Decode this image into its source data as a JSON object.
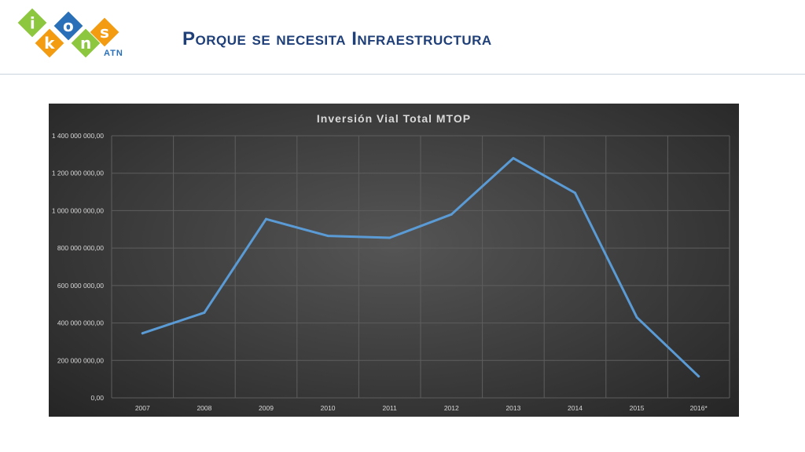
{
  "slide": {
    "title": "Porque se necesita Infraestructura"
  },
  "logo": {
    "letters": [
      "i",
      "k",
      "o",
      "n",
      "s"
    ],
    "colors": [
      "#8dc63f",
      "#f39c12",
      "#2a70b8",
      "#8dc63f",
      "#f39c12"
    ],
    "sub": "ATN"
  },
  "chart_data": {
    "type": "line",
    "title": "Inversión Vial Total MTOP",
    "xlabel": "",
    "ylabel": "",
    "categories": [
      "2007",
      "2008",
      "2009",
      "2010",
      "2011",
      "2012",
      "2013",
      "2014",
      "2015",
      "2016*"
    ],
    "series": [
      {
        "values": [
          345000000,
          455000000,
          955000000,
          865000000,
          855000000,
          980000000,
          1280000000,
          1095000000,
          430000000,
          115000000
        ],
        "color": "#5b9bd5"
      }
    ],
    "ylim": [
      0,
      1400000000
    ],
    "yticks": [
      0,
      200000000,
      400000000,
      600000000,
      800000000,
      1000000000,
      1200000000,
      1400000000
    ],
    "ytick_labels": [
      "0,00",
      "200 000 000,00",
      "400 000 000,00",
      "600 000 000,00",
      "800 000 000,00",
      "1 000 000 000,00",
      "1 200 000 000,00",
      "1 400 000 000,00"
    ],
    "grid": true,
    "legend": "none",
    "background": "#3a3a3a",
    "gridcolor": "#5e5e5e",
    "textcolor": "#d9d9d9"
  }
}
